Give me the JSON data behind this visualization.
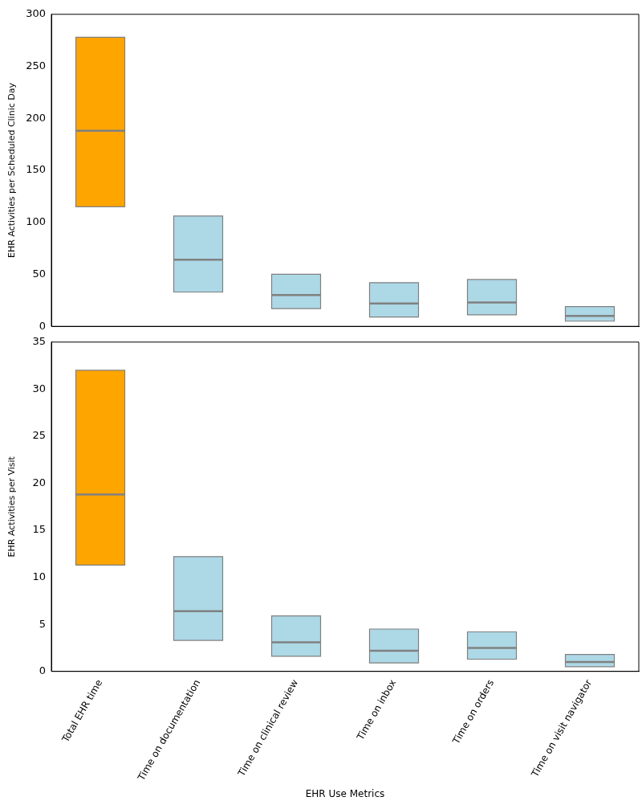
{
  "chart_data": [
    {
      "type": "box",
      "ylabel": "EHR Activities per Scheduled Clinic Day",
      "categories": [
        null,
        null,
        null,
        null,
        null,
        null
      ],
      "colors": [
        "#ffa500",
        "#add8e6",
        "#add8e6",
        "#add8e6",
        "#add8e6",
        "#add8e6"
      ],
      "boxes": [
        {
          "low": 115,
          "q1": 115,
          "median": 188,
          "q3": 278,
          "high": 278
        },
        {
          "low": 33,
          "q1": 33,
          "median": 64,
          "q3": 106,
          "high": 106
        },
        {
          "low": 17,
          "q1": 17,
          "median": 30,
          "q3": 50,
          "high": 50
        },
        {
          "low": 9,
          "q1": 9,
          "median": 22,
          "q3": 42,
          "high": 42
        },
        {
          "low": 11,
          "q1": 11,
          "median": 23,
          "q3": 45,
          "high": 45
        },
        {
          "low": 5,
          "q1": 5,
          "median": 10,
          "q3": 19,
          "high": 19
        }
      ],
      "ylim": [
        0,
        300
      ],
      "yticks": [
        0,
        50,
        100,
        150,
        200,
        250,
        300
      ],
      "grid": false,
      "legend": false,
      "tick_labels": "y"
    },
    {
      "type": "box",
      "xlabel": "EHR Use Metrics",
      "ylabel": "EHR Activities per Visit",
      "categories": [
        "Total EHR time",
        "Time on documentation",
        "Time on clinical review",
        "Time on inbox",
        "Time on orders",
        "Time on visit navigator"
      ],
      "colors": [
        "#ffa500",
        "#add8e6",
        "#add8e6",
        "#add8e6",
        "#add8e6",
        "#add8e6"
      ],
      "boxes": [
        {
          "low": 11.3,
          "q1": 11.3,
          "median": 18.8,
          "q3": 32.0,
          "high": 32.0
        },
        {
          "low": 3.3,
          "q1": 3.3,
          "median": 6.4,
          "q3": 12.2,
          "high": 12.2
        },
        {
          "low": 1.6,
          "q1": 1.6,
          "median": 3.1,
          "q3": 5.9,
          "high": 5.9
        },
        {
          "low": 0.9,
          "q1": 0.9,
          "median": 2.2,
          "q3": 4.5,
          "high": 4.5
        },
        {
          "low": 1.3,
          "q1": 1.3,
          "median": 2.5,
          "q3": 4.2,
          "high": 4.2
        },
        {
          "low": 0.5,
          "q1": 0.5,
          "median": 1.0,
          "q3": 1.8,
          "high": 1.8
        }
      ],
      "ylim": [
        0,
        35
      ],
      "yticks": [
        0,
        5,
        10,
        15,
        20,
        25,
        30,
        35
      ],
      "grid": false,
      "legend": false
    }
  ]
}
